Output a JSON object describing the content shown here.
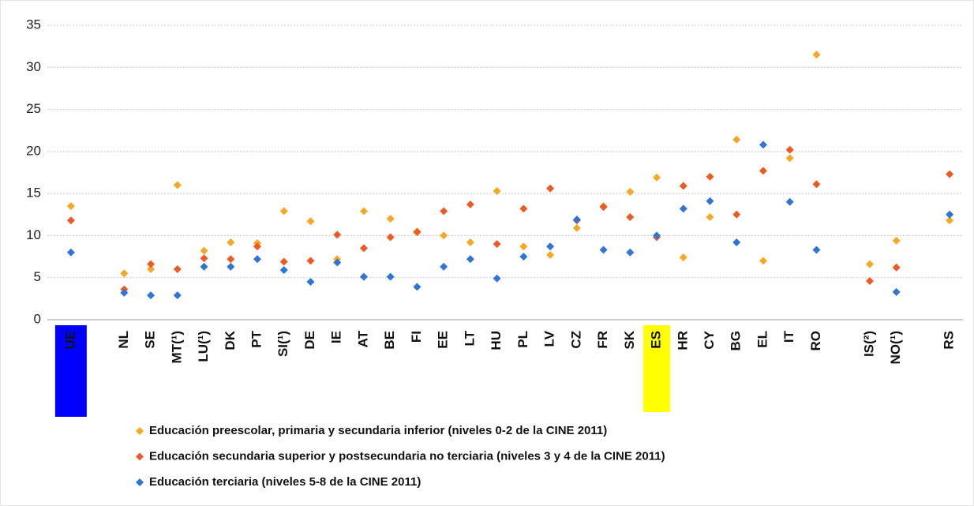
{
  "chart_data": {
    "type": "dot",
    "categories": [
      "UE",
      null,
      "NL",
      "SE",
      "MT(¹)",
      "LU(¹)",
      "DK",
      "PT",
      "SI(¹)",
      "DE",
      "IE",
      "AT",
      "BE",
      "FI",
      "EE",
      "LT",
      "HU",
      "PL",
      "LV",
      "CZ",
      "FR",
      "SK",
      "ES",
      "HR",
      "CY",
      "BG",
      "EL",
      "IT",
      "RO",
      null,
      "IS(²)",
      "NO(¹)",
      null,
      "RS"
    ],
    "series": [
      {
        "name": "Educación preescolar, primaria y secundaria inferior (niveles 0-2 de la CINE 2011)",
        "color": "#f7a823",
        "values": [
          13.5,
          null,
          5.5,
          6.0,
          16.0,
          8.2,
          9.2,
          9.1,
          12.9,
          11.7,
          7.2,
          12.9,
          12.0,
          10.5,
          10.0,
          9.2,
          15.3,
          8.7,
          7.7,
          10.9,
          13.5,
          15.2,
          16.9,
          7.4,
          12.2,
          21.4,
          7.0,
          19.2,
          31.5,
          null,
          6.6,
          9.4,
          null,
          11.8
        ]
      },
      {
        "name": "Educación secundaria superior y postsecundaria no terciaria (niveles 3 y 4 de la CINE 2011)",
        "color": "#ee5a24",
        "values": [
          11.8,
          null,
          3.6,
          6.6,
          6.0,
          7.3,
          7.2,
          8.7,
          6.9,
          7.0,
          10.1,
          8.5,
          9.8,
          10.4,
          12.9,
          13.7,
          9.0,
          13.2,
          15.6,
          11.8,
          13.4,
          12.2,
          9.8,
          15.9,
          17.0,
          12.5,
          17.7,
          20.2,
          16.1,
          null,
          4.6,
          6.2,
          null,
          17.3
        ]
      },
      {
        "name": "Educación terciaria (niveles 5-8 de la CINE 2011)",
        "color": "#2e75d6",
        "values": [
          8.0,
          null,
          3.2,
          2.9,
          2.9,
          6.3,
          6.3,
          7.2,
          5.9,
          4.5,
          6.8,
          5.1,
          5.1,
          3.9,
          6.3,
          7.2,
          4.9,
          7.5,
          8.7,
          11.9,
          8.3,
          8.0,
          10.0,
          13.2,
          14.1,
          9.2,
          20.8,
          14.0,
          8.3,
          null,
          null,
          3.3,
          null,
          12.5
        ]
      }
    ],
    "highlights": [
      {
        "category": 0,
        "color": "#0000ff",
        "text_color": "#ffffff"
      },
      {
        "category": 22,
        "color": "#ffff00",
        "text_color": "#111111"
      }
    ],
    "ylim": [
      0,
      35
    ],
    "yticks": [
      0,
      5,
      10,
      15,
      20,
      25,
      30,
      35
    ],
    "grid": true
  }
}
